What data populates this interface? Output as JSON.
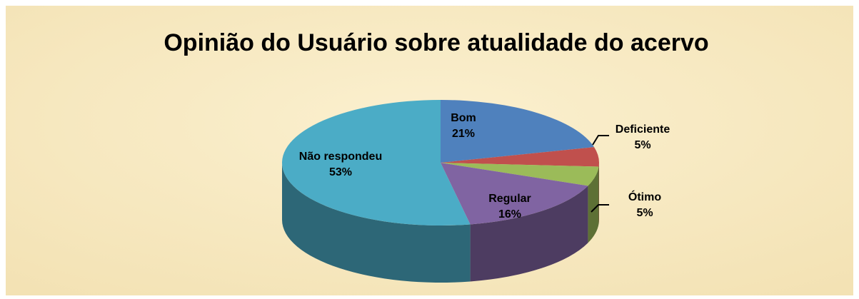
{
  "chart_data": {
    "type": "pie3d",
    "title": "Opinião do Usuário sobre atualidade do acervo",
    "categories": [
      "Bom",
      "Deficiente",
      "Ótimo",
      "Regular",
      "Não respondeu"
    ],
    "values": [
      21,
      5,
      5,
      16,
      53
    ],
    "value_labels": [
      "21%",
      "5%",
      "5%",
      "16%",
      "53%"
    ],
    "colors": [
      "#4f81bd",
      "#c0504d",
      "#9bbb59",
      "#8064a2",
      "#4bacc6"
    ]
  }
}
